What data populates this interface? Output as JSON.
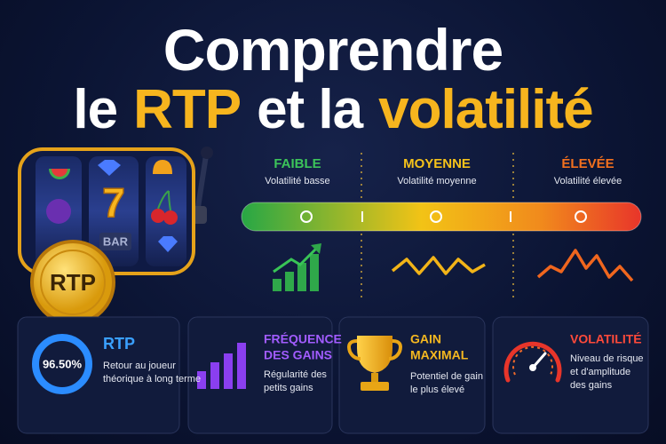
{
  "title": {
    "line1": "Comprendre",
    "line2": [
      "le",
      "RTP",
      "et la",
      "volatilité"
    ]
  },
  "slot": {
    "symbols": [
      "7",
      "BAR"
    ],
    "coin": "RTP"
  },
  "scale": [
    {
      "label": "FAIBLE",
      "description": "Volatilité basse"
    },
    {
      "label": "MOYENNE",
      "description": "Volatilité moyenne"
    },
    {
      "label": "ÉLEVÉE",
      "description": "Volatilité élevée"
    }
  ],
  "cards": [
    {
      "badge": "96.50%",
      "title": [
        "RTP"
      ],
      "description": [
        "Retour au joueur",
        "théorique à long terme"
      ]
    },
    {
      "title": [
        "FRÉQUENCE",
        "DES GAINS"
      ],
      "description": [
        "Régularité des",
        "petits gains"
      ]
    },
    {
      "title": [
        "GAIN",
        "MAXIMAL"
      ],
      "description": [
        "Potentiel de gain",
        "le plus élevé"
      ]
    },
    {
      "title": [
        "VOLATILITÉ"
      ],
      "description": [
        "Niveau de risque",
        "et d'amplitude",
        "des gains"
      ]
    }
  ]
}
